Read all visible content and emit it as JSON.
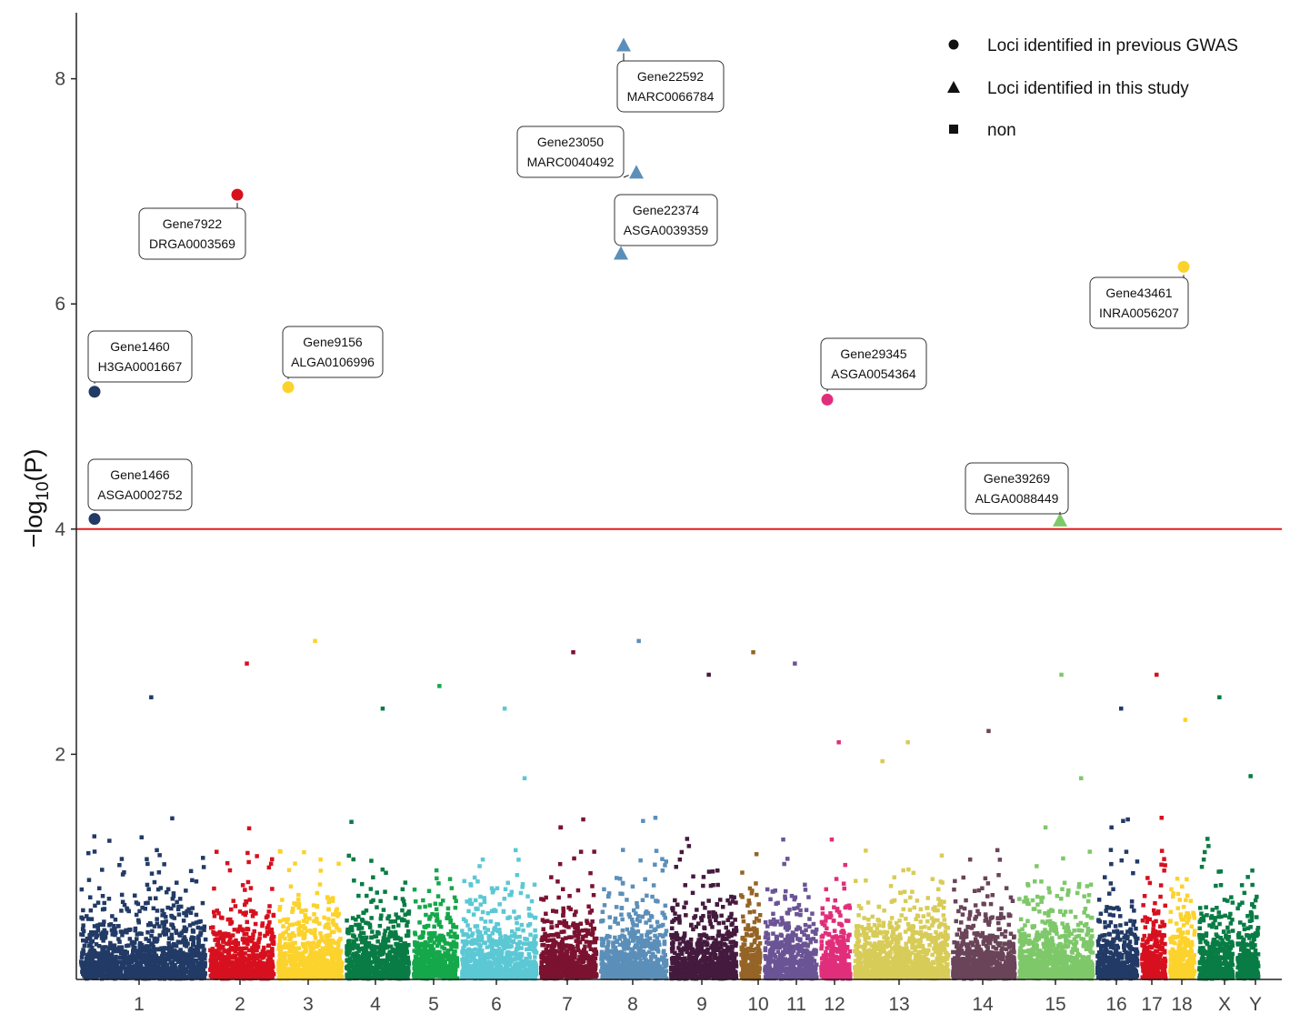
{
  "chart_data": {
    "type": "scatter",
    "subtype": "manhattan",
    "title": "",
    "xlabel": "",
    "ylabel": "−log10(P)",
    "ylabel_parts": {
      "prefix": "−log",
      "subscript": "10",
      "suffix": "(P)"
    },
    "ylim": [
      0,
      8.6
    ],
    "yticks": [
      2,
      4,
      6,
      8
    ],
    "grid": false,
    "threshold": {
      "value": 4,
      "color": "#e41a1c"
    },
    "legend": {
      "placement": "top-right",
      "entries": [
        {
          "label": "Loci identified in previous GWAS",
          "shape": "circle"
        },
        {
          "label": "Loci identified in this study",
          "shape": "triangle"
        },
        {
          "label": "non",
          "shape": "square"
        }
      ]
    },
    "chromosomes": [
      {
        "name": "1",
        "label": "1",
        "color": "#223a66",
        "peak": 2.5
      },
      {
        "name": "2",
        "label": "2",
        "color": "#d7101f",
        "peak": 2.8
      },
      {
        "name": "3",
        "label": "3",
        "color": "#fcd22c",
        "peak": 3.0
      },
      {
        "name": "4",
        "label": "4",
        "color": "#087c44",
        "peak": 2.4
      },
      {
        "name": "5",
        "label": "5",
        "color": "#14a84a",
        "peak": 2.6
      },
      {
        "name": "6",
        "label": "6",
        "color": "#5bc8d4",
        "peak": 2.4
      },
      {
        "name": "7",
        "label": "7",
        "color": "#7b1230",
        "peak": 2.9
      },
      {
        "name": "8",
        "label": "8",
        "color": "#5b8fb9",
        "peak": 3.0
      },
      {
        "name": "9",
        "label": "9",
        "color": "#441a3e",
        "peak": 2.7
      },
      {
        "name": "10",
        "label": "10",
        "color": "#956426",
        "peak": 2.9
      },
      {
        "name": "11",
        "label": "11",
        "color": "#6b5495",
        "peak": 2.8
      },
      {
        "name": "12",
        "label": "12",
        "color": "#e12e7b",
        "peak": 2.1
      },
      {
        "name": "13",
        "label": "13",
        "color": "#d8cc58",
        "peak": 2.1
      },
      {
        "name": "14",
        "label": "14",
        "color": "#6a4458",
        "peak": 2.2
      },
      {
        "name": "15",
        "label": "15",
        "color": "#7ec86a",
        "peak": 2.7
      },
      {
        "name": "16",
        "label": "16",
        "color": "#223a66",
        "peak": 2.4
      },
      {
        "name": "17",
        "label": "17",
        "color": "#d7101f",
        "peak": 2.7
      },
      {
        "name": "18",
        "label": "18",
        "color": "#fcd22c",
        "peak": 2.3
      },
      {
        "name": "X",
        "label": "X",
        "color": "#087c44",
        "peak": 2.5
      },
      {
        "name": "Y",
        "label": "Y",
        "color": "#087c44",
        "peak": 1.8
      }
    ],
    "significant_loci": [
      {
        "chrom": "1",
        "y": 5.22,
        "shape": "circle",
        "color": "#223a66",
        "gene": "Gene1460",
        "snp": "H3GA0001667"
      },
      {
        "chrom": "1",
        "y": 4.09,
        "shape": "circle",
        "color": "#223a66",
        "gene": "Gene1466",
        "snp": "ASGA0002752"
      },
      {
        "chrom": "2",
        "y": 6.97,
        "shape": "circle",
        "color": "#d7101f",
        "gene": "Gene7922",
        "snp": "DRGA0003569"
      },
      {
        "chrom": "3",
        "y": 5.26,
        "shape": "circle",
        "color": "#fcd22c",
        "gene": "Gene9156",
        "snp": "ALGA0106996"
      },
      {
        "chrom": "8",
        "y": 8.3,
        "shape": "triangle",
        "color": "#5b8fb9",
        "gene": "Gene22592",
        "snp": "MARC0066784"
      },
      {
        "chrom": "8",
        "y": 7.17,
        "shape": "triangle",
        "color": "#5b8fb9",
        "gene": "Gene23050",
        "snp": "MARC0040492"
      },
      {
        "chrom": "8",
        "y": 6.45,
        "shape": "triangle",
        "color": "#5b8fb9",
        "gene": "Gene22374",
        "snp": "ASGA0039359"
      },
      {
        "chrom": "12",
        "y": 5.15,
        "shape": "circle",
        "color": "#e12e7b",
        "gene": "Gene29345",
        "snp": "ASGA0054364"
      },
      {
        "chrom": "15",
        "y": 4.08,
        "shape": "triangle",
        "color": "#7ec86a",
        "gene": "Gene39269",
        "snp": "ALGA0088449"
      },
      {
        "chrom": "18",
        "y": 6.33,
        "shape": "circle",
        "color": "#fcd22c",
        "gene": "Gene43461",
        "snp": "INRA0056207"
      }
    ]
  }
}
